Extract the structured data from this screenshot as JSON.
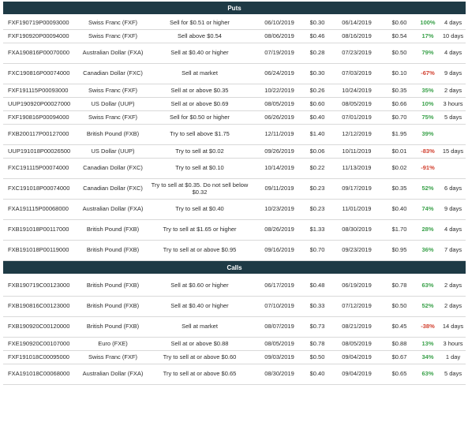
{
  "colors": {
    "header_bg": "#1e3a45",
    "positive": "#3aa14a",
    "negative": "#d2402f"
  },
  "sections": [
    {
      "title": "Puts",
      "rows": [
        {
          "symbol": "FXF190719P00093000",
          "underlying": "Swiss Franc (FXF)",
          "instruction": "Sell for $0.51 or higher",
          "open_date": "06/10/2019",
          "open_price": "$0.30",
          "close_date": "06/14/2019",
          "close_price": "$0.60",
          "return": "100%",
          "duration": "4 days"
        },
        {
          "symbol": "FXF190920P00094000",
          "underlying": "Swiss Franc (FXF)",
          "instruction": "Sell above $0.54",
          "open_date": "08/06/2019",
          "open_price": "$0.46",
          "close_date": "08/16/2019",
          "close_price": "$0.54",
          "return": "17%",
          "duration": "10 days"
        },
        {
          "symbol": "FXA190816P00070000",
          "underlying": "Australian Dollar (FXA)",
          "instruction": "Sell at $0.40 or higher",
          "open_date": "07/19/2019",
          "open_price": "$0.28",
          "close_date": "07/23/2019",
          "close_price": "$0.50",
          "return": "79%",
          "duration": "4 days"
        },
        {
          "symbol": "FXC190816P00074000",
          "underlying": "Canadian Dollar (FXC)",
          "instruction": "Sell at market",
          "open_date": "06/24/2019",
          "open_price": "$0.30",
          "close_date": "07/03/2019",
          "close_price": "$0.10",
          "return": "-67%",
          "duration": "9 days"
        },
        {
          "symbol": "FXF191115P00093000",
          "underlying": "Swiss Franc (FXF)",
          "instruction": "Sell at or above $0.35",
          "open_date": "10/22/2019",
          "open_price": "$0.26",
          "close_date": "10/24/2019",
          "close_price": "$0.35",
          "return": "35%",
          "duration": "2 days"
        },
        {
          "symbol": "UUP190920P00027000",
          "underlying": "US Dollar (UUP)",
          "instruction": "Sell at or above $0.69",
          "open_date": "08/05/2019",
          "open_price": "$0.60",
          "close_date": "08/05/2019",
          "close_price": "$0.66",
          "return": "10%",
          "duration": "3 hours"
        },
        {
          "symbol": "FXF190816P00094000",
          "underlying": "Swiss Franc (FXF)",
          "instruction": "Sell for $0.50 or higher",
          "open_date": "06/26/2019",
          "open_price": "$0.40",
          "close_date": "07/01/2019",
          "close_price": "$0.70",
          "return": "75%",
          "duration": "5 days"
        },
        {
          "symbol": "FXB200117P00127000",
          "underlying": "British Pound (FXB)",
          "instruction": "Try to sell above $1.75",
          "open_date": "12/11/2019",
          "open_price": "$1.40",
          "close_date": "12/12/2019",
          "close_price": "$1.95",
          "return": "39%",
          "duration": ""
        },
        {
          "symbol": "UUP191018P00026500",
          "underlying": "US Dollar (UUP)",
          "instruction": "Try to sell at $0.02",
          "open_date": "09/26/2019",
          "open_price": "$0.06",
          "close_date": "10/11/2019",
          "close_price": "$0.01",
          "return": "-83%",
          "duration": "15 days"
        },
        {
          "symbol": "FXC191115P00074000",
          "underlying": "Canadian Dollar (FXC)",
          "instruction": "Try to sell at $0.10",
          "open_date": "10/14/2019",
          "open_price": "$0.22",
          "close_date": "11/13/2019",
          "close_price": "$0.02",
          "return": "-91%",
          "duration": ""
        },
        {
          "symbol": "FXC191018P00074000",
          "underlying": "Canadian Dollar (FXC)",
          "instruction": "Try to sell at $0.35. Do not sell below $0.32",
          "open_date": "09/11/2019",
          "open_price": "$0.23",
          "close_date": "09/17/2019",
          "close_price": "$0.35",
          "return": "52%",
          "duration": "6 days"
        },
        {
          "symbol": "FXA191115P00068000",
          "underlying": "Australian Dollar (FXA)",
          "instruction": "Try to sell at $0.40",
          "open_date": "10/23/2019",
          "open_price": "$0.23",
          "close_date": "11/01/2019",
          "close_price": "$0.40",
          "return": "74%",
          "duration": "9 days"
        },
        {
          "symbol": "FXB191018P00117000",
          "underlying": "British Pound (FXB)",
          "instruction": "Try to sell at $1.65 or higher",
          "open_date": "08/26/2019",
          "open_price": "$1.33",
          "close_date": "08/30/2019",
          "close_price": "$1.70",
          "return": "28%",
          "duration": "4 days"
        },
        {
          "symbol": "FXB191018P00119000",
          "underlying": "British Pound (FXB)",
          "instruction": "Try to sell at or above $0.95",
          "open_date": "09/16/2019",
          "open_price": "$0.70",
          "close_date": "09/23/2019",
          "close_price": "$0.95",
          "return": "36%",
          "duration": "7 days"
        }
      ]
    },
    {
      "title": "Calls",
      "rows": [
        {
          "symbol": "FXB190719C00123000",
          "underlying": "British Pound (FXB)",
          "instruction": "Sell at $0.60 or higher",
          "open_date": "06/17/2019",
          "open_price": "$0.48",
          "close_date": "06/19/2019",
          "close_price": "$0.78",
          "return": "63%",
          "duration": "2 days"
        },
        {
          "symbol": "FXB190816C00123000",
          "underlying": "British Pound (FXB)",
          "instruction": "Sell at $0.40 or higher",
          "open_date": "07/10/2019",
          "open_price": "$0.33",
          "close_date": "07/12/2019",
          "close_price": "$0.50",
          "return": "52%",
          "duration": "2 days"
        },
        {
          "symbol": "FXB190920C00120000",
          "underlying": "British Pound (FXB)",
          "instruction": "Sell at market",
          "open_date": "08/07/2019",
          "open_price": "$0.73",
          "close_date": "08/21/2019",
          "close_price": "$0.45",
          "return": "-38%",
          "duration": "14 days"
        },
        {
          "symbol": "FXE190920C00107000",
          "underlying": "Euro (FXE)",
          "instruction": "Sell at or above $0.88",
          "open_date": "08/05/2019",
          "open_price": "$0.78",
          "close_date": "08/05/2019",
          "close_price": "$0.88",
          "return": "13%",
          "duration": "3 hours"
        },
        {
          "symbol": "FXF191018C00095000",
          "underlying": "Swiss Franc (FXF)",
          "instruction": "Try to sell at or above $0.60",
          "open_date": "09/03/2019",
          "open_price": "$0.50",
          "close_date": "09/04/2019",
          "close_price": "$0.67",
          "return": "34%",
          "duration": "1 day"
        },
        {
          "symbol": "FXA191018C00068000",
          "underlying": "Australian Dollar (FXA)",
          "instruction": "Try to sell at or above $0.65",
          "open_date": "08/30/2019",
          "open_price": "$0.40",
          "close_date": "09/04/2019",
          "close_price": "$0.65",
          "return": "63%",
          "duration": "5 days"
        }
      ]
    }
  ]
}
